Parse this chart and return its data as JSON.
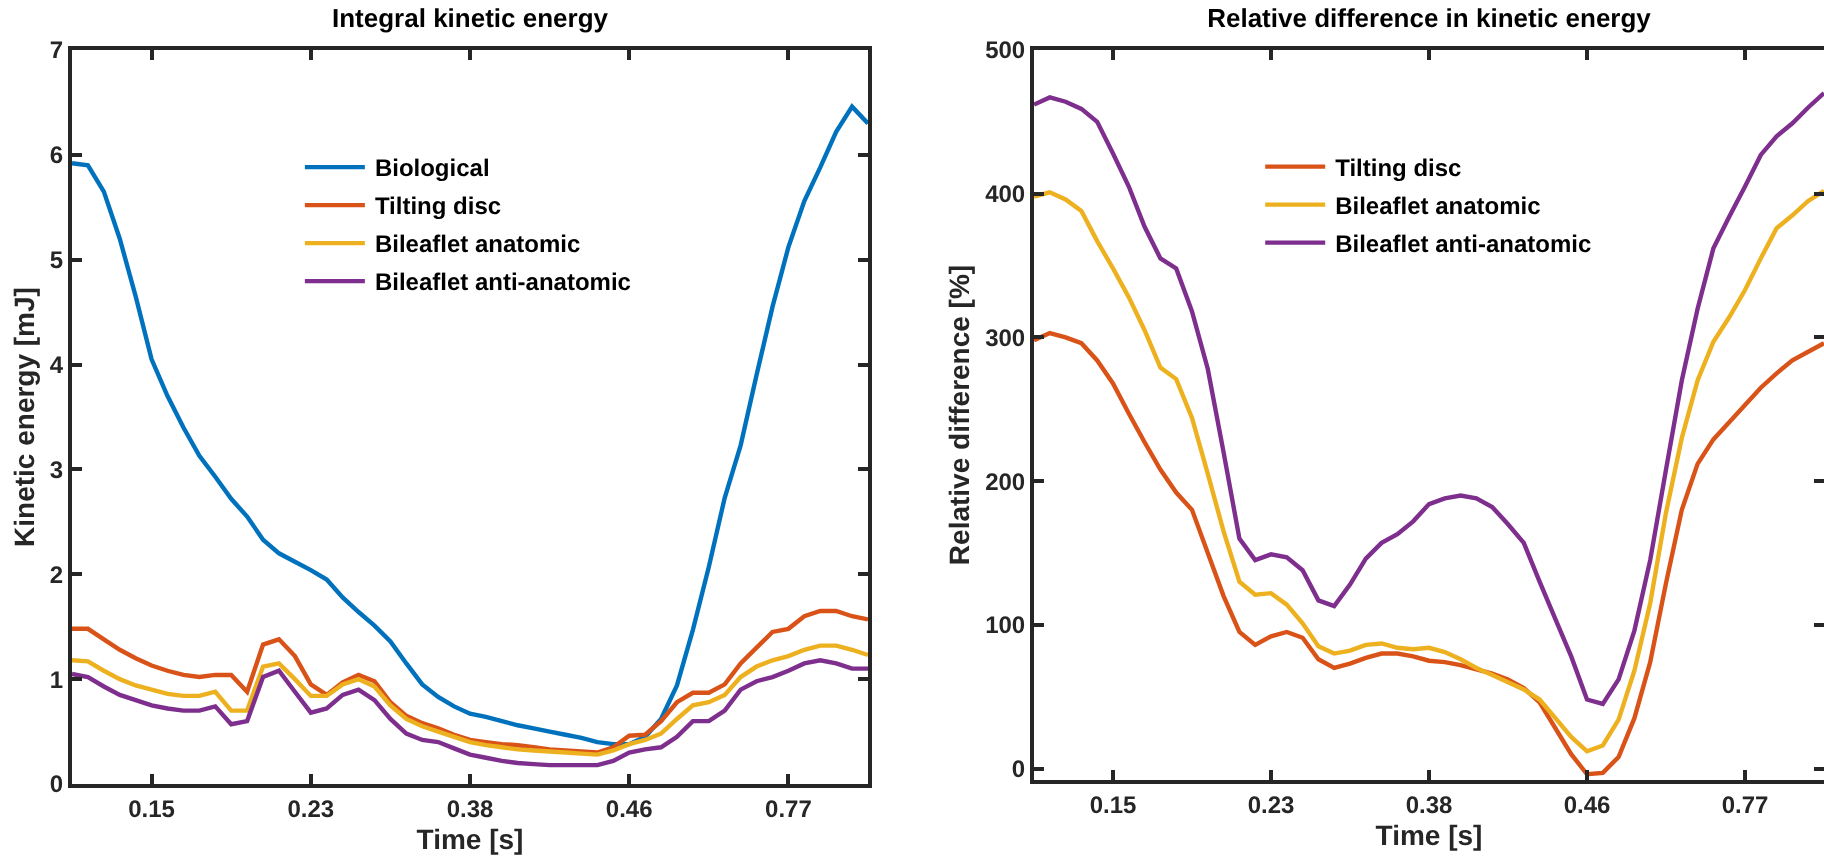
{
  "chart_data": [
    {
      "type": "line",
      "title": "Integral kinetic energy",
      "xlabel": "Time [s]",
      "ylabel": "Kinetic energy [mJ]",
      "categories": [
        null,
        null,
        null,
        null,
        null,
        "0.15",
        null,
        null,
        null,
        null,
        null,
        null,
        null,
        null,
        null,
        "0.23",
        null,
        null,
        null,
        null,
        null,
        null,
        null,
        null,
        null,
        "0.38",
        null,
        null,
        null,
        null,
        null,
        null,
        null,
        null,
        null,
        "0.46",
        null,
        null,
        null,
        null,
        null,
        null,
        null,
        null,
        null,
        "0.77",
        null,
        null,
        null,
        null,
        null
      ],
      "ylim": [
        0,
        7
      ],
      "yticks": [
        0,
        1,
        2,
        3,
        4,
        5,
        6,
        7
      ],
      "grid": false,
      "legend": "top",
      "marker": "none",
      "line_style": "solid",
      "series": [
        {
          "name": "Biological",
          "color": "#0072bd",
          "values": [
            5.92,
            5.9,
            5.65,
            5.2,
            4.65,
            4.05,
            3.7,
            3.4,
            3.13,
            2.93,
            2.72,
            2.55,
            2.33,
            2.2,
            2.12,
            2.04,
            1.95,
            1.78,
            1.64,
            1.51,
            1.36,
            1.15,
            0.95,
            0.83,
            0.74,
            0.67,
            0.64,
            0.6,
            0.56,
            0.53,
            0.5,
            0.47,
            0.44,
            0.4,
            0.38,
            0.38,
            0.45,
            0.62,
            0.94,
            1.47,
            2.07,
            2.73,
            3.23,
            3.9,
            4.55,
            5.12,
            5.56,
            5.88,
            6.22,
            6.46,
            6.3
          ]
        },
        {
          "name": "Tilting disc",
          "color": "#d95319",
          "values": [
            1.48,
            1.48,
            1.38,
            1.28,
            1.2,
            1.13,
            1.08,
            1.04,
            1.02,
            1.04,
            1.04,
            0.88,
            1.33,
            1.38,
            1.22,
            0.95,
            0.85,
            0.97,
            1.04,
            0.98,
            0.78,
            0.65,
            0.58,
            0.53,
            0.47,
            0.42,
            0.4,
            0.38,
            0.37,
            0.35,
            0.33,
            0.32,
            0.31,
            0.3,
            0.35,
            0.46,
            0.47,
            0.6,
            0.78,
            0.87,
            0.87,
            0.95,
            1.15,
            1.3,
            1.45,
            1.48,
            1.6,
            1.65,
            1.65,
            1.6,
            1.57
          ]
        },
        {
          "name": "Bileaflet anatomic",
          "color": "#edb120",
          "values": [
            1.18,
            1.17,
            1.08,
            1.0,
            0.94,
            0.9,
            0.86,
            0.84,
            0.84,
            0.88,
            0.7,
            0.7,
            1.12,
            1.15,
            1.0,
            0.84,
            0.84,
            0.95,
            1.0,
            0.93,
            0.75,
            0.62,
            0.55,
            0.5,
            0.45,
            0.4,
            0.37,
            0.35,
            0.33,
            0.32,
            0.31,
            0.3,
            0.29,
            0.28,
            0.32,
            0.38,
            0.42,
            0.48,
            0.62,
            0.75,
            0.78,
            0.85,
            1.02,
            1.12,
            1.18,
            1.22,
            1.28,
            1.32,
            1.32,
            1.28,
            1.23
          ]
        },
        {
          "name": "Bileaflet anti-anatomic",
          "color": "#7e2f8e",
          "values": [
            1.05,
            1.02,
            0.93,
            0.85,
            0.8,
            0.75,
            0.72,
            0.7,
            0.7,
            0.74,
            0.57,
            0.6,
            1.02,
            1.08,
            0.88,
            0.68,
            0.72,
            0.85,
            0.9,
            0.8,
            0.62,
            0.48,
            0.42,
            0.4,
            0.34,
            0.28,
            0.25,
            0.22,
            0.2,
            0.19,
            0.18,
            0.18,
            0.18,
            0.18,
            0.22,
            0.3,
            0.33,
            0.35,
            0.45,
            0.6,
            0.6,
            0.7,
            0.9,
            0.98,
            1.02,
            1.08,
            1.15,
            1.18,
            1.15,
            1.1,
            1.1
          ]
        }
      ]
    },
    {
      "type": "line",
      "title": "Relative difference in kinetic energy",
      "xlabel": "Time [s]",
      "ylabel": "Relative difference [%]",
      "categories": [
        null,
        null,
        null,
        null,
        null,
        "0.15",
        null,
        null,
        null,
        null,
        null,
        null,
        null,
        null,
        null,
        "0.23",
        null,
        null,
        null,
        null,
        null,
        null,
        null,
        null,
        null,
        "0.38",
        null,
        null,
        null,
        null,
        null,
        null,
        null,
        null,
        null,
        "0.46",
        null,
        null,
        null,
        null,
        null,
        null,
        null,
        null,
        null,
        "0.77",
        null,
        null,
        null,
        null,
        null
      ],
      "ylim": [
        -8,
        500
      ],
      "yticks": [
        0,
        100,
        200,
        300,
        400,
        500
      ],
      "grid": false,
      "legend": "top",
      "marker": "none",
      "line_style": "solid",
      "series": [
        {
          "name": "Tilting disc",
          "color": "#d95319",
          "values": [
            298,
            303,
            300,
            296,
            284,
            268,
            247,
            227,
            208,
            192,
            180,
            150,
            120,
            95,
            86,
            92,
            95,
            91,
            76,
            70,
            73,
            77,
            80,
            80,
            78,
            75,
            74,
            72,
            69,
            66,
            62,
            56,
            46,
            28,
            10,
            -4,
            -3,
            8,
            35,
            74,
            129,
            180,
            212,
            229,
            241,
            253,
            265,
            275,
            284,
            290,
            296
          ]
        },
        {
          "name": "Bileaflet anatomic",
          "color": "#edb120",
          "values": [
            398,
            401,
            396,
            388,
            367,
            348,
            328,
            305,
            279,
            271,
            244,
            205,
            165,
            130,
            121,
            122,
            114,
            101,
            85,
            80,
            82,
            86,
            87,
            84,
            83,
            84,
            81,
            76,
            70,
            65,
            60,
            55,
            48,
            35,
            22,
            12,
            16,
            34,
            68,
            115,
            178,
            230,
            270,
            297,
            314,
            333,
            355,
            376,
            385,
            395,
            402
          ]
        },
        {
          "name": "Bileaflet anti-anatomic",
          "color": "#7e2f8e",
          "values": [
            462,
            467,
            464,
            459,
            450,
            428,
            405,
            377,
            355,
            348,
            318,
            278,
            220,
            160,
            145,
            149,
            147,
            138,
            117,
            113,
            128,
            146,
            157,
            163,
            172,
            184,
            188,
            190,
            188,
            182,
            170,
            157,
            130,
            104,
            78,
            48,
            45,
            62,
            96,
            145,
            208,
            270,
            320,
            362,
            384,
            405,
            427,
            440,
            449,
            460,
            470
          ]
        }
      ]
    }
  ]
}
